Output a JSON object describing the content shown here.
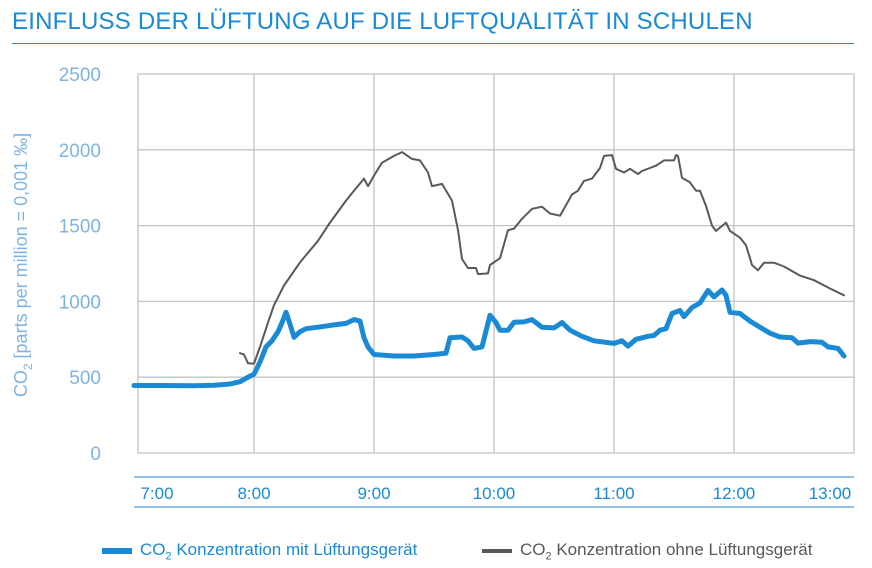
{
  "chart_data": {
    "type": "line",
    "title": "EINFLUSS DER LÜFTUNG AUF DIE LUFTQUALITÄT IN SCHULEN",
    "ylabel": {
      "prefix": "CO",
      "sub": "2",
      "rest": " [parts per million = 0,001 ‰]"
    },
    "xlabel": "",
    "ylim": [
      0,
      2500
    ],
    "yticks": [
      "0",
      "500",
      "1000",
      "1500",
      "2000",
      "2500"
    ],
    "xlim": [
      "7:00",
      "13:00"
    ],
    "xticks": [
      "7:00",
      "8:00",
      "9:00",
      "10:00",
      "11:00",
      "12:00",
      "13:00"
    ],
    "grid": true,
    "legend_position": "bottom",
    "series": [
      {
        "name": "CO2 Konzentration mit Lüftungsgerät",
        "legend": {
          "prefix": "CO",
          "sub": "2",
          "rest": " Konzentration mit Lüftungsgerät"
        },
        "color": "#1a8ad4",
        "points": [
          [
            "7:00",
            445
          ],
          [
            "7:15",
            445
          ],
          [
            "7:30",
            443
          ],
          [
            "7:40",
            447
          ],
          [
            "7:48",
            455
          ],
          [
            "7:53",
            470
          ],
          [
            "7:57",
            500
          ],
          [
            "8:00",
            520
          ],
          [
            "8:03",
            600
          ],
          [
            "8:06",
            700
          ],
          [
            "8:09",
            740
          ],
          [
            "8:12",
            800
          ],
          [
            "8:14",
            860
          ],
          [
            "8:16",
            928
          ],
          [
            "8:18",
            850
          ],
          [
            "8:20",
            763
          ],
          [
            "8:23",
            800
          ],
          [
            "8:26",
            820
          ],
          [
            "8:32",
            830
          ],
          [
            "8:40",
            845
          ],
          [
            "8:46",
            855
          ],
          [
            "8:50",
            880
          ],
          [
            "8:53",
            870
          ],
          [
            "8:55",
            760
          ],
          [
            "8:57",
            700
          ],
          [
            "9:00",
            650
          ],
          [
            "9:10",
            640
          ],
          [
            "9:20",
            640
          ],
          [
            "9:30",
            650
          ],
          [
            "9:36",
            658
          ],
          [
            "9:38",
            760
          ],
          [
            "9:44",
            765
          ],
          [
            "9:47",
            740
          ],
          [
            "9:50",
            690
          ],
          [
            "9:54",
            700
          ],
          [
            "9:58",
            908
          ],
          [
            "10:01",
            860
          ],
          [
            "10:03",
            810
          ],
          [
            "10:07",
            810
          ],
          [
            "10:10",
            862
          ],
          [
            "10:15",
            865
          ],
          [
            "10:19",
            880
          ],
          [
            "10:24",
            830
          ],
          [
            "10:30",
            825
          ],
          [
            "10:34",
            860
          ],
          [
            "10:38",
            810
          ],
          [
            "10:44",
            770
          ],
          [
            "10:50",
            740
          ],
          [
            "11:00",
            723
          ],
          [
            "11:04",
            740
          ],
          [
            "11:07",
            705
          ],
          [
            "11:11",
            750
          ],
          [
            "11:17",
            770
          ],
          [
            "11:20",
            775
          ],
          [
            "11:23",
            810
          ],
          [
            "11:26",
            820
          ],
          [
            "11:29",
            920
          ],
          [
            "11:33",
            940
          ],
          [
            "11:35",
            900
          ],
          [
            "11:39",
            960
          ],
          [
            "11:43",
            990
          ],
          [
            "11:47",
            1072
          ],
          [
            "11:50",
            1030
          ],
          [
            "11:54",
            1075
          ],
          [
            "11:56",
            1040
          ],
          [
            "11:58",
            928
          ],
          [
            "12:03",
            920
          ],
          [
            "12:08",
            870
          ],
          [
            "12:13",
            830
          ],
          [
            "12:18",
            790
          ],
          [
            "12:23",
            765
          ],
          [
            "12:29",
            760
          ],
          [
            "12:32",
            725
          ],
          [
            "12:38",
            735
          ],
          [
            "12:44",
            730
          ],
          [
            "12:47",
            700
          ],
          [
            "12:52",
            690
          ],
          [
            "12:55",
            640
          ]
        ]
      },
      {
        "name": "CO2 Konzentration ohne Lüftungsgerät",
        "legend": {
          "prefix": "CO",
          "sub": "2",
          "rest": " Konzentration ohne Lüftungsgerät"
        },
        "color": "#595959",
        "points": [
          [
            "7:53",
            658
          ],
          [
            "7:55",
            650
          ],
          [
            "7:57",
            592
          ],
          [
            "8:00",
            590
          ],
          [
            "8:03",
            700
          ],
          [
            "8:07",
            860
          ],
          [
            "8:10",
            975
          ],
          [
            "8:15",
            1105
          ],
          [
            "8:23",
            1257
          ],
          [
            "8:32",
            1400
          ],
          [
            "8:38",
            1520
          ],
          [
            "8:46",
            1665
          ],
          [
            "8:50",
            1730
          ],
          [
            "8:55",
            1810
          ],
          [
            "8:57",
            1760
          ],
          [
            "9:00",
            1830
          ],
          [
            "9:04",
            1915
          ],
          [
            "9:10",
            1960
          ],
          [
            "9:14",
            1985
          ],
          [
            "9:19",
            1940
          ],
          [
            "9:23",
            1930
          ],
          [
            "9:27",
            1850
          ],
          [
            "9:29",
            1760
          ],
          [
            "9:34",
            1775
          ],
          [
            "9:39",
            1665
          ],
          [
            "9:42",
            1470
          ],
          [
            "9:44",
            1280
          ],
          [
            "9:47",
            1220
          ],
          [
            "9:51",
            1220
          ],
          [
            "9:52",
            1180
          ],
          [
            "9:57",
            1185
          ],
          [
            "9:58",
            1240
          ],
          [
            "10:03",
            1285
          ],
          [
            "10:07",
            1470
          ],
          [
            "10:10",
            1480
          ],
          [
            "10:14",
            1545
          ],
          [
            "10:19",
            1610
          ],
          [
            "10:24",
            1625
          ],
          [
            "10:28",
            1580
          ],
          [
            "10:33",
            1565
          ],
          [
            "10:39",
            1705
          ],
          [
            "10:42",
            1730
          ],
          [
            "10:45",
            1795
          ],
          [
            "10:49",
            1810
          ],
          [
            "10:53",
            1880
          ],
          [
            "10:55",
            1960
          ],
          [
            "10:59",
            1965
          ],
          [
            "11:01",
            1875
          ],
          [
            "11:05",
            1850
          ],
          [
            "11:08",
            1875
          ],
          [
            "11:12",
            1840
          ],
          [
            "11:14",
            1860
          ],
          [
            "11:21",
            1895
          ],
          [
            "11:25",
            1930
          ],
          [
            "11:30",
            1930
          ],
          [
            "11:31",
            1965
          ],
          [
            "11:32",
            1960
          ],
          [
            "11:34",
            1815
          ],
          [
            "11:38",
            1785
          ],
          [
            "11:41",
            1730
          ],
          [
            "11:43",
            1730
          ],
          [
            "11:46",
            1630
          ],
          [
            "11:49",
            1500
          ],
          [
            "11:51",
            1465
          ],
          [
            "11:56",
            1520
          ],
          [
            "11:58",
            1465
          ],
          [
            "12:03",
            1420
          ],
          [
            "12:06",
            1370
          ],
          [
            "12:08",
            1285
          ],
          [
            "12:09",
            1240
          ],
          [
            "12:12",
            1205
          ],
          [
            "12:15",
            1255
          ],
          [
            "12:20",
            1255
          ],
          [
            "12:25",
            1230
          ],
          [
            "12:33",
            1170
          ],
          [
            "12:40",
            1140
          ],
          [
            "12:48",
            1085
          ],
          [
            "12:55",
            1040
          ]
        ]
      }
    ]
  }
}
